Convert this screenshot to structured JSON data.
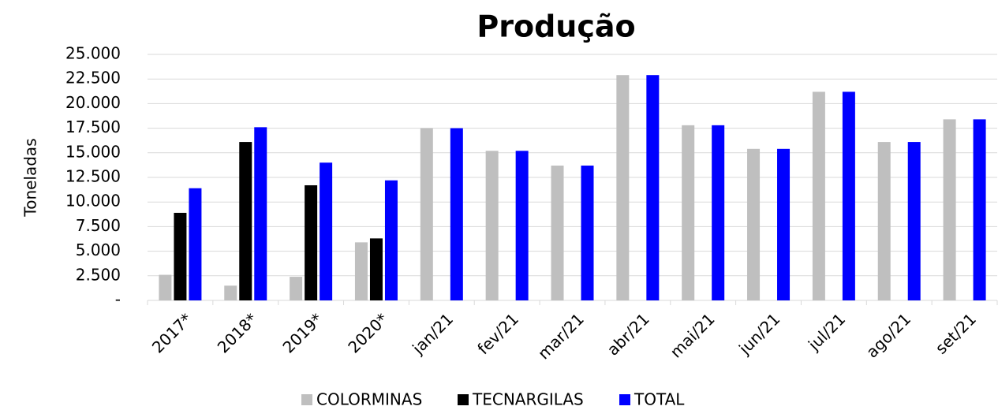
{
  "chart_data": {
    "type": "bar",
    "title": "Produção",
    "y_label": "Toneladas",
    "categories": [
      "2017*",
      "2018*",
      "2019*",
      "2020*",
      "jan/21",
      "fev/21",
      "mar/21",
      "abr/21",
      "mai/21",
      "jun/21",
      "jul/21",
      "ago/21",
      "set/21"
    ],
    "series": [
      {
        "name": "COLORMINAS",
        "color": "#bfbfbf",
        "values": [
          2600,
          1500,
          2400,
          5900,
          17500,
          15200,
          13700,
          22900,
          17800,
          15400,
          21200,
          16100,
          18400
        ]
      },
      {
        "name": "TECNARGILAS",
        "color": "#000000",
        "values": [
          8900,
          16100,
          11700,
          6300,
          null,
          null,
          null,
          null,
          null,
          null,
          null,
          null,
          null
        ]
      },
      {
        "name": "TOTAL",
        "color": "#0000ff",
        "values": [
          11400,
          17600,
          14000,
          12200,
          17500,
          15200,
          13700,
          22900,
          17800,
          15400,
          21200,
          16100,
          18400
        ]
      }
    ],
    "ylim": [
      0,
      25000
    ],
    "yticks": [
      {
        "value": 0,
        "label": "-"
      },
      {
        "value": 2500,
        "label": "2.500"
      },
      {
        "value": 5000,
        "label": "5.000"
      },
      {
        "value": 7500,
        "label": "7.500"
      },
      {
        "value": 10000,
        "label": "10.000"
      },
      {
        "value": 12500,
        "label": "12.500"
      },
      {
        "value": 15000,
        "label": "15.000"
      },
      {
        "value": 17500,
        "label": "17.500"
      },
      {
        "value": 20000,
        "label": "20.000"
      },
      {
        "value": 22500,
        "label": "22.500"
      },
      {
        "value": 25000,
        "label": "25.000"
      }
    ],
    "grid": true,
    "legend": "bottom"
  }
}
